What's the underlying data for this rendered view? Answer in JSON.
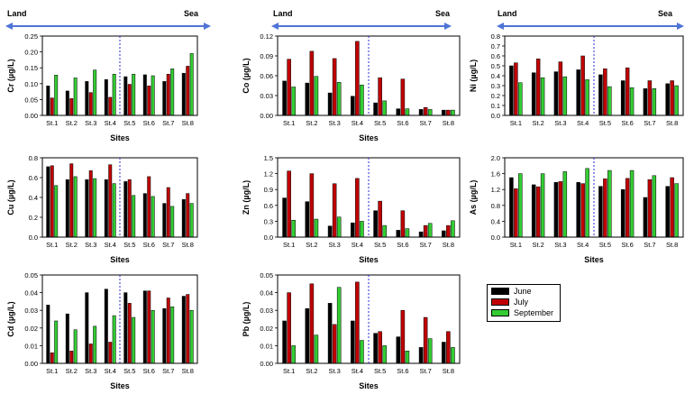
{
  "figure": {
    "land_label": "Land",
    "sea_label": "Sea",
    "legend": [
      {
        "name": "June",
        "color": "#000000"
      },
      {
        "name": "July",
        "color": "#c00000"
      },
      {
        "name": "September",
        "color": "#33cc33"
      }
    ]
  },
  "chart_data": [
    {
      "type": "bar",
      "element": "Cr",
      "ylabel": "Cr (µg/L)",
      "xlabel": "Sites",
      "categories": [
        "St.1",
        "St.2",
        "St.3",
        "St.4",
        "St.5",
        "St.6",
        "St.7",
        "St.8"
      ],
      "ylim": [
        0,
        0.25
      ],
      "yticks": [
        "0.00",
        "0.05",
        "0.10",
        "0.15",
        "0.20",
        "0.25"
      ],
      "series": [
        {
          "name": "June",
          "values": [
            0.093,
            0.077,
            0.107,
            0.113,
            0.122,
            0.128,
            0.107,
            0.133
          ]
        },
        {
          "name": "July",
          "values": [
            0.055,
            0.053,
            0.072,
            0.057,
            0.098,
            0.093,
            0.13,
            0.155
          ]
        },
        {
          "name": "September",
          "values": [
            0.127,
            0.118,
            0.143,
            0.13,
            0.13,
            0.125,
            0.147,
            0.195
          ]
        }
      ]
    },
    {
      "type": "bar",
      "element": "Co",
      "ylabel": "Co (µg/L)",
      "xlabel": "Sites",
      "categories": [
        "St.1",
        "St.2",
        "St.3",
        "St.4",
        "St.5",
        "St.6",
        "St.7",
        "St.8"
      ],
      "ylim": [
        0,
        0.12
      ],
      "yticks": [
        "0.00",
        "0.03",
        "0.06",
        "0.09",
        "0.12"
      ],
      "series": [
        {
          "name": "June",
          "values": [
            0.052,
            0.049,
            0.034,
            0.029,
            0.019,
            0.01,
            0.009,
            0.008
          ]
        },
        {
          "name": "July",
          "values": [
            0.085,
            0.097,
            0.086,
            0.112,
            0.057,
            0.055,
            0.012,
            0.008
          ]
        },
        {
          "name": "September",
          "values": [
            0.043,
            0.059,
            0.05,
            0.046,
            0.022,
            0.01,
            0.009,
            0.008
          ]
        }
      ]
    },
    {
      "type": "bar",
      "element": "Ni",
      "ylabel": "Ni (µg/L)",
      "xlabel": "",
      "categories": [
        "St.1",
        "St.2",
        "St.3",
        "St.4",
        "St.5",
        "St.6",
        "St.7",
        "St.8"
      ],
      "ylim": [
        0,
        0.8
      ],
      "yticks": [
        "0.0",
        "0.1",
        "0.2",
        "0.3",
        "0.4",
        "0.5",
        "0.6",
        "0.7",
        "0.8"
      ],
      "series": [
        {
          "name": "June",
          "values": [
            0.5,
            0.43,
            0.44,
            0.46,
            0.41,
            0.35,
            0.27,
            0.32
          ]
        },
        {
          "name": "July",
          "values": [
            0.53,
            0.57,
            0.54,
            0.6,
            0.47,
            0.48,
            0.35,
            0.35
          ]
        },
        {
          "name": "September",
          "values": [
            0.33,
            0.38,
            0.39,
            0.36,
            0.29,
            0.28,
            0.27,
            0.3
          ]
        }
      ]
    },
    {
      "type": "bar",
      "element": "Cu",
      "ylabel": "Cu (µg/L)",
      "xlabel": "Sites",
      "categories": [
        "St.1",
        "St.2",
        "St.3",
        "St.4",
        "St.5",
        "St.6",
        "St.7",
        "St.8"
      ],
      "ylim": [
        0,
        0.8
      ],
      "yticks": [
        "0.0",
        "0.2",
        "0.4",
        "0.6",
        "0.8"
      ],
      "series": [
        {
          "name": "June",
          "values": [
            0.71,
            0.58,
            0.58,
            0.58,
            0.56,
            0.44,
            0.34,
            0.38
          ]
        },
        {
          "name": "July",
          "values": [
            0.72,
            0.74,
            0.67,
            0.73,
            0.58,
            0.61,
            0.5,
            0.44
          ]
        },
        {
          "name": "September",
          "values": [
            0.52,
            0.61,
            0.59,
            0.54,
            0.42,
            0.41,
            0.31,
            0.34
          ]
        }
      ]
    },
    {
      "type": "bar",
      "element": "Zn",
      "ylabel": "Zn (µg/L)",
      "xlabel": "Sites",
      "categories": [
        "St.1",
        "St.2",
        "St.3",
        "St.4",
        "St.5",
        "St.6",
        "St.7",
        "St.8"
      ],
      "ylim": [
        0,
        1.5
      ],
      "yticks": [
        "0.0",
        "0.3",
        "0.6",
        "0.9",
        "1.2",
        "1.5"
      ],
      "series": [
        {
          "name": "June",
          "values": [
            0.74,
            0.67,
            0.21,
            0.27,
            0.5,
            0.13,
            0.1,
            0.12
          ]
        },
        {
          "name": "July",
          "values": [
            1.25,
            1.2,
            1.01,
            1.11,
            0.68,
            0.5,
            0.22,
            0.22
          ]
        },
        {
          "name": "September",
          "values": [
            0.32,
            0.34,
            0.38,
            0.3,
            0.22,
            0.16,
            0.26,
            0.31
          ]
        }
      ]
    },
    {
      "type": "bar",
      "element": "As",
      "ylabel": "As (µg/L)",
      "xlabel": "Sites",
      "categories": [
        "St.1",
        "St.2",
        "St.3",
        "St.4",
        "St.5",
        "St.6",
        "St.7",
        "St.8"
      ],
      "ylim": [
        0,
        2.0
      ],
      "yticks": [
        "0.0",
        "0.4",
        "0.8",
        "1.2",
        "1.6",
        "2.0"
      ],
      "series": [
        {
          "name": "June",
          "values": [
            1.5,
            1.32,
            1.38,
            1.38,
            1.28,
            1.2,
            1.0,
            1.28
          ]
        },
        {
          "name": "July",
          "values": [
            1.22,
            1.27,
            1.4,
            1.35,
            1.47,
            1.48,
            1.45,
            1.5
          ]
        },
        {
          "name": "September",
          "values": [
            1.6,
            1.6,
            1.65,
            1.73,
            1.68,
            1.68,
            1.55,
            1.35
          ]
        }
      ]
    },
    {
      "type": "bar",
      "element": "Cd",
      "ylabel": "Cd (µg/L)",
      "xlabel": "Sites",
      "categories": [
        "St.1",
        "St.2",
        "St.3",
        "St.4",
        "St.5",
        "St.6",
        "St.7",
        "St.8"
      ],
      "ylim": [
        0,
        0.05
      ],
      "yticks": [
        "0.00",
        "0.01",
        "0.02",
        "0.03",
        "0.04",
        "0.05"
      ],
      "series": [
        {
          "name": "June",
          "values": [
            0.033,
            0.028,
            0.04,
            0.042,
            0.04,
            0.041,
            0.031,
            0.038
          ]
        },
        {
          "name": "July",
          "values": [
            0.006,
            0.007,
            0.011,
            0.012,
            0.034,
            0.041,
            0.037,
            0.039
          ]
        },
        {
          "name": "September",
          "values": [
            0.024,
            0.019,
            0.021,
            0.027,
            0.026,
            0.03,
            0.032,
            0.03
          ]
        }
      ]
    },
    {
      "type": "bar",
      "element": "Pb",
      "ylabel": "Pb (µg/L)",
      "xlabel": "Sites",
      "categories": [
        "St.1",
        "St.2",
        "St.3",
        "St.4",
        "St.5",
        "St.6",
        "St.7",
        "St.8"
      ],
      "ylim": [
        0,
        0.05
      ],
      "yticks": [
        "0.00",
        "0.01",
        "0.02",
        "0.03",
        "0.04",
        "0.05"
      ],
      "series": [
        {
          "name": "June",
          "values": [
            0.024,
            0.031,
            0.034,
            0.024,
            0.017,
            0.015,
            0.009,
            0.012
          ]
        },
        {
          "name": "July",
          "values": [
            0.04,
            0.045,
            0.022,
            0.046,
            0.018,
            0.03,
            0.026,
            0.018
          ]
        },
        {
          "name": "September",
          "values": [
            0.01,
            0.016,
            0.043,
            0.013,
            0.01,
            0.007,
            0.014,
            0.009
          ]
        }
      ]
    }
  ]
}
